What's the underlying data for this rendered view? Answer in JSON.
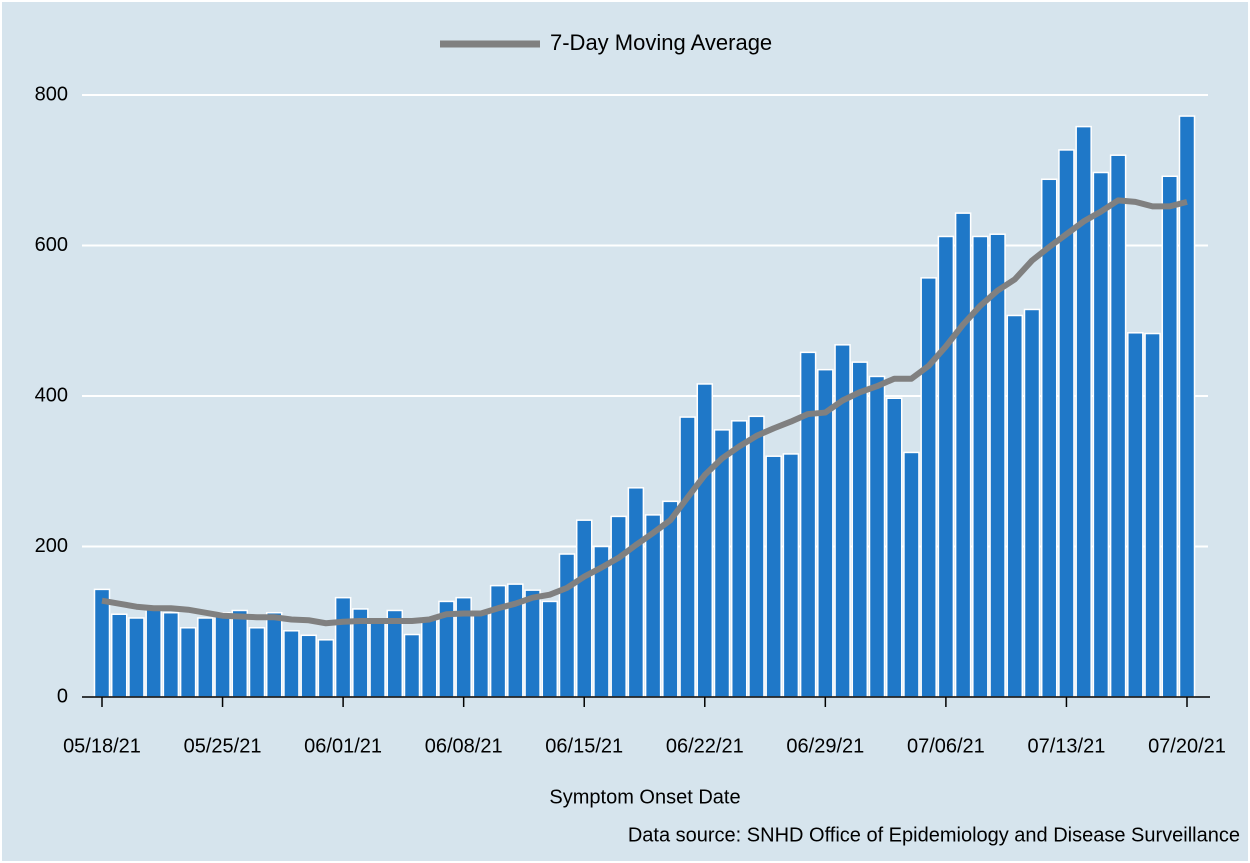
{
  "chart_data": {
    "type": "combo",
    "xlabel": "Symptom Onset Date",
    "source": "Data source: SNHD Office of Epidemiology and Disease Surveillance",
    "categories": [
      "05/18/21",
      null,
      null,
      null,
      null,
      null,
      null,
      "05/25/21",
      null,
      null,
      null,
      null,
      null,
      null,
      "06/01/21",
      null,
      null,
      null,
      null,
      null,
      null,
      "06/08/21",
      null,
      null,
      null,
      null,
      null,
      null,
      "06/15/21",
      null,
      null,
      null,
      null,
      null,
      null,
      "06/22/21",
      null,
      null,
      null,
      null,
      null,
      null,
      "06/29/21",
      null,
      null,
      null,
      null,
      null,
      null,
      "07/06/21",
      null,
      null,
      null,
      null,
      null,
      null,
      "07/13/21",
      null,
      null,
      null,
      null,
      null,
      null,
      "07/20/21"
    ],
    "series": [
      {
        "type": "bar",
        "color": "#1f78c8",
        "values": [
          143,
          110,
          105,
          118,
          112,
          92,
          105,
          112,
          115,
          92,
          112,
          88,
          82,
          76,
          132,
          117,
          100,
          115,
          83,
          105,
          127,
          132,
          112,
          148,
          150,
          142,
          127,
          190,
          235,
          200,
          240,
          278,
          242,
          260,
          372,
          416,
          355,
          367,
          373,
          320,
          323,
          458,
          435,
          468,
          445,
          426,
          397,
          325,
          557,
          612,
          643,
          612,
          615,
          507,
          515,
          688,
          727,
          758,
          697,
          720,
          484,
          483,
          692,
          772
        ]
      },
      {
        "type": "line",
        "name": "7-Day Moving Average",
        "color": "#808080",
        "values": [
          128,
          124,
          120,
          118,
          118,
          116,
          112,
          108,
          107,
          106,
          106,
          103,
          102,
          98,
          100,
          101,
          101,
          101,
          101,
          103,
          110,
          111,
          111,
          118,
          124,
          132,
          136,
          145,
          160,
          172,
          185,
          202,
          218,
          235,
          265,
          295,
          317,
          333,
          347,
          357,
          366,
          376,
          378,
          394,
          405,
          413,
          423,
          423,
          440,
          466,
          495,
          520,
          540,
          555,
          580,
          598,
          615,
          632,
          645,
          660,
          658,
          652,
          652,
          658
        ]
      }
    ],
    "ylim": [
      0,
      800
    ],
    "yticks": [
      0,
      200,
      400,
      600,
      800
    ],
    "grid": true,
    "legend": "top"
  }
}
